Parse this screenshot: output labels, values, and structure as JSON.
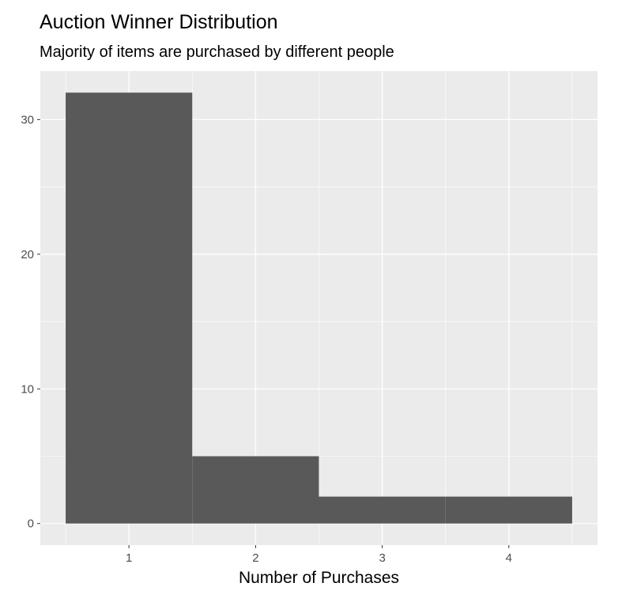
{
  "chart_data": {
    "type": "bar",
    "title": "Auction Winner Distribution",
    "subtitle": "Majority of items are purchased by different people",
    "xlabel": "Number of Purchases",
    "ylabel": "",
    "categories": [
      "1",
      "2",
      "3",
      "4"
    ],
    "x": [
      1,
      2,
      3,
      4
    ],
    "values": [
      32,
      5,
      2,
      2
    ],
    "xlim": [
      0.3,
      4.7
    ],
    "ylim": [
      -1.6,
      33.6
    ],
    "xticks": [
      1,
      2,
      3,
      4
    ],
    "yticks": [
      0,
      10,
      20,
      30
    ],
    "grid": true,
    "legend": "none",
    "colors": {
      "bar": "#595959",
      "panel": "#ebebeb",
      "grid": "#ffffff",
      "tick_label": "#4d4d4d"
    }
  }
}
